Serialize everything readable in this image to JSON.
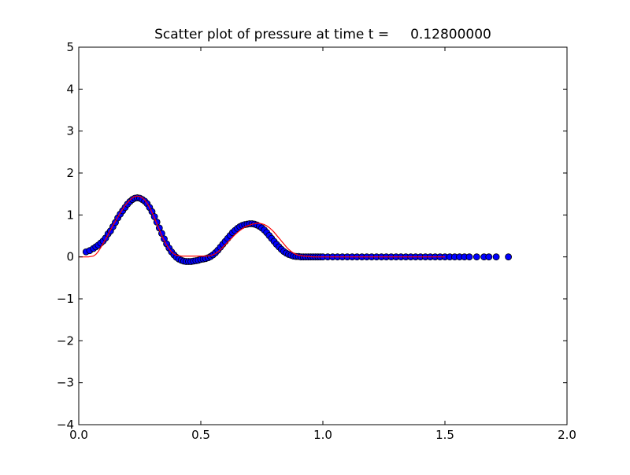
{
  "chart_data": {
    "type": "scatter",
    "title": "Scatter plot of pressure at time t =     0.12800000",
    "xlabel": "",
    "ylabel": "",
    "xlim": [
      0.0,
      2.0
    ],
    "ylim": [
      -4,
      5
    ],
    "xticks": [
      "0.0",
      "0.5",
      "1.0",
      "1.5",
      "2.0"
    ],
    "yticks": [
      "−4",
      "−3",
      "−2",
      "−1",
      "0",
      "1",
      "2",
      "3",
      "4",
      "5"
    ],
    "grid": false,
    "legend": "none",
    "series": [
      {
        "kind": "scatter",
        "color": "#0000ff",
        "edge_color": "#000000",
        "x": [
          0.03,
          0.045,
          0.06,
          0.07,
          0.08,
          0.09,
          0.1,
          0.11,
          0.12,
          0.13,
          0.14,
          0.15,
          0.16,
          0.17,
          0.18,
          0.19,
          0.2,
          0.21,
          0.22,
          0.23,
          0.24,
          0.25,
          0.26,
          0.27,
          0.28,
          0.29,
          0.3,
          0.31,
          0.32,
          0.33,
          0.34,
          0.35,
          0.36,
          0.37,
          0.38,
          0.39,
          0.4,
          0.41,
          0.42,
          0.43,
          0.44,
          0.45,
          0.46,
          0.47,
          0.48,
          0.49,
          0.5,
          0.51,
          0.52,
          0.53,
          0.54,
          0.55,
          0.56,
          0.57,
          0.58,
          0.59,
          0.6,
          0.61,
          0.62,
          0.63,
          0.64,
          0.65,
          0.66,
          0.67,
          0.68,
          0.69,
          0.7,
          0.71,
          0.72,
          0.73,
          0.74,
          0.75,
          0.76,
          0.77,
          0.78,
          0.79,
          0.8,
          0.81,
          0.82,
          0.83,
          0.84,
          0.85,
          0.86,
          0.87,
          0.88,
          0.89,
          0.9,
          0.91,
          0.92,
          0.93,
          0.94,
          0.95,
          0.96,
          0.97,
          0.98,
          0.99,
          1.0,
          1.02,
          1.04,
          1.06,
          1.08,
          1.1,
          1.12,
          1.14,
          1.16,
          1.18,
          1.2,
          1.22,
          1.24,
          1.26,
          1.28,
          1.3,
          1.32,
          1.34,
          1.36,
          1.38,
          1.4,
          1.42,
          1.44,
          1.46,
          1.48,
          1.5,
          1.52,
          1.54,
          1.56,
          1.58,
          1.6,
          1.63,
          1.66,
          1.68,
          1.71,
          1.76
        ],
        "y": [
          0.12,
          0.15,
          0.2,
          0.24,
          0.28,
          0.33,
          0.38,
          0.45,
          0.55,
          0.62,
          0.72,
          0.82,
          0.93,
          1.02,
          1.1,
          1.18,
          1.26,
          1.32,
          1.37,
          1.4,
          1.41,
          1.4,
          1.37,
          1.33,
          1.27,
          1.18,
          1.08,
          0.96,
          0.83,
          0.69,
          0.56,
          0.43,
          0.31,
          0.21,
          0.12,
          0.05,
          -0.01,
          -0.05,
          -0.08,
          -0.1,
          -0.11,
          -0.11,
          -0.11,
          -0.1,
          -0.09,
          -0.08,
          -0.06,
          -0.05,
          -0.04,
          -0.02,
          0.01,
          0.05,
          0.1,
          0.16,
          0.23,
          0.3,
          0.37,
          0.44,
          0.51,
          0.58,
          0.63,
          0.68,
          0.72,
          0.75,
          0.77,
          0.78,
          0.79,
          0.79,
          0.78,
          0.76,
          0.73,
          0.69,
          0.64,
          0.58,
          0.51,
          0.44,
          0.37,
          0.3,
          0.24,
          0.18,
          0.13,
          0.09,
          0.06,
          0.04,
          0.02,
          0.01,
          0.01,
          0.0,
          0.0,
          0.0,
          0.0,
          0.0,
          0.0,
          0.0,
          0.0,
          0.0,
          0.0,
          0.0,
          0.0,
          0.0,
          0.0,
          0.0,
          0.0,
          0.0,
          0.0,
          0.0,
          0.0,
          0.0,
          0.0,
          0.0,
          0.0,
          0.0,
          0.0,
          0.0,
          0.0,
          0.0,
          0.0,
          0.0,
          0.0,
          0.0,
          0.0,
          0.0,
          0.0,
          0.0,
          0.0,
          0.0,
          0.0,
          0.0,
          0.0,
          0.0,
          0.0,
          0.0
        ]
      },
      {
        "kind": "line",
        "color": "#ff0000",
        "x": [
          0.0,
          0.02,
          0.04,
          0.06,
          0.07,
          0.08,
          0.09,
          0.1,
          0.11,
          0.12,
          0.13,
          0.14,
          0.15,
          0.16,
          0.17,
          0.18,
          0.19,
          0.2,
          0.21,
          0.22,
          0.23,
          0.24,
          0.25,
          0.26,
          0.27,
          0.28,
          0.29,
          0.3,
          0.31,
          0.32,
          0.33,
          0.34,
          0.35,
          0.36,
          0.37,
          0.38,
          0.39,
          0.4,
          0.42,
          0.44,
          0.46,
          0.48,
          0.5,
          0.52,
          0.54,
          0.55,
          0.56,
          0.57,
          0.58,
          0.59,
          0.6,
          0.61,
          0.62,
          0.63,
          0.64,
          0.65,
          0.66,
          0.67,
          0.68,
          0.69,
          0.7,
          0.71,
          0.72,
          0.73,
          0.74,
          0.75,
          0.76,
          0.77,
          0.78,
          0.79,
          0.8,
          0.81,
          0.82,
          0.83,
          0.84,
          0.85,
          0.86,
          0.87,
          0.88,
          0.89,
          0.9,
          0.92,
          0.94,
          0.96,
          0.98,
          1.0,
          1.1,
          1.2,
          1.3,
          1.4,
          1.5
        ],
        "y": [
          0.0,
          0.0,
          0.0,
          0.02,
          0.06,
          0.13,
          0.22,
          0.32,
          0.42,
          0.53,
          0.64,
          0.75,
          0.85,
          0.95,
          1.05,
          1.14,
          1.23,
          1.3,
          1.36,
          1.41,
          1.44,
          1.45,
          1.44,
          1.41,
          1.36,
          1.28,
          1.18,
          1.06,
          0.93,
          0.79,
          0.65,
          0.51,
          0.39,
          0.28,
          0.19,
          0.12,
          0.07,
          0.04,
          0.02,
          0.02,
          0.02,
          0.02,
          0.02,
          0.02,
          0.03,
          0.05,
          0.08,
          0.12,
          0.17,
          0.23,
          0.29,
          0.35,
          0.41,
          0.47,
          0.53,
          0.58,
          0.63,
          0.67,
          0.71,
          0.74,
          0.76,
          0.78,
          0.79,
          0.8,
          0.8,
          0.79,
          0.77,
          0.74,
          0.7,
          0.65,
          0.59,
          0.52,
          0.45,
          0.38,
          0.31,
          0.24,
          0.18,
          0.13,
          0.09,
          0.06,
          0.04,
          0.02,
          0.01,
          0.0,
          0.0,
          0.0,
          0.0,
          0.0,
          0.0,
          0.0,
          0.0
        ]
      }
    ]
  }
}
